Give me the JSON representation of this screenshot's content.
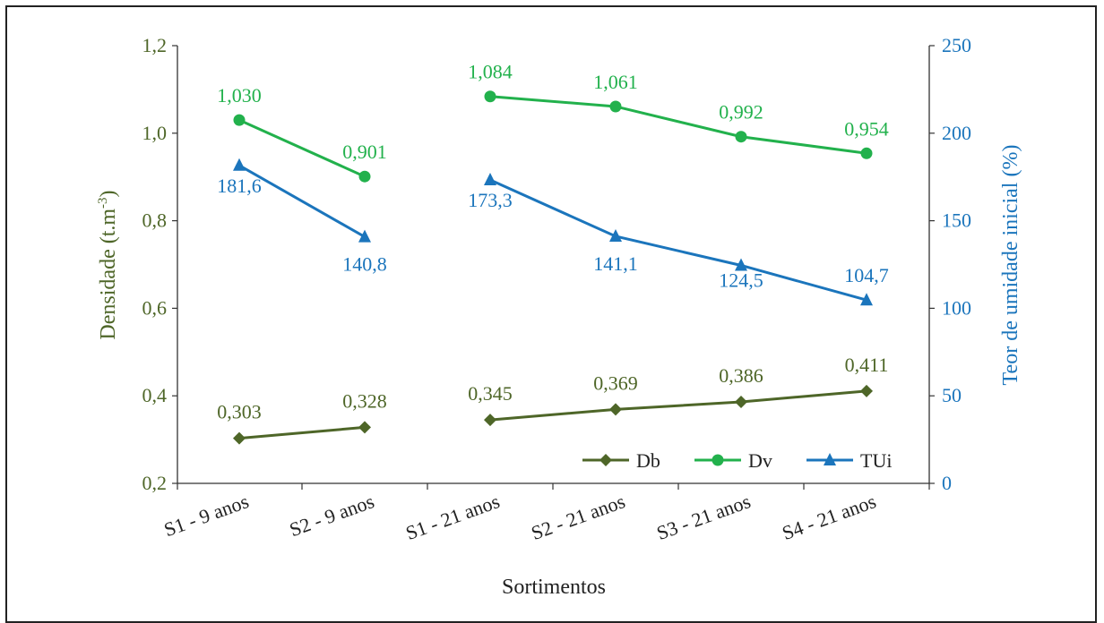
{
  "chart_data": {
    "type": "line",
    "categories": [
      "S1 - 9 anos",
      "S2 - 9 anos",
      "S1 - 21 anos",
      "S2 - 21 anos",
      "S3 - 21 anos",
      "S4 - 21 anos"
    ],
    "xlabel": "Sortimentos",
    "ylabel_left": "Densidade (t.m",
    "ylabel_left_sup": "-3",
    "ylabel_left_end": ")",
    "ylabel_right": "Teor de umidade inicial  (%)",
    "ylim_left": [
      0.2,
      1.2
    ],
    "ylim_right": [
      0,
      250
    ],
    "left_ticks": [
      "0,2",
      "0,4",
      "0,6",
      "0,8",
      "1,0",
      "1,2"
    ],
    "right_ticks": [
      "0",
      "50",
      "100",
      "150",
      "200",
      "250"
    ],
    "grid": false,
    "legend_position": "bottom-right",
    "series": [
      {
        "name": "Db",
        "axis": "left",
        "color": "#4e6628",
        "marker": "diamond",
        "segments": [
          [
            0,
            1
          ],
          [
            2,
            3,
            4,
            5
          ]
        ],
        "values": [
          0.303,
          0.328,
          0.345,
          0.369,
          0.386,
          0.411
        ],
        "labels": [
          "0,303",
          "0,328",
          "0,345",
          "0,369",
          "0,386",
          "0,411"
        ]
      },
      {
        "name": "Dv",
        "axis": "left",
        "color": "#22b14c",
        "marker": "circle",
        "segments": [
          [
            0,
            1
          ],
          [
            2,
            3,
            4,
            5
          ]
        ],
        "values": [
          1.03,
          0.901,
          1.084,
          1.061,
          0.992,
          0.954
        ],
        "labels": [
          "1,030",
          "0,901",
          "1,084",
          "1,061",
          "0,992",
          "0,954"
        ]
      },
      {
        "name": "TUi",
        "axis": "right",
        "color": "#1b75bc",
        "marker": "triangle",
        "segments": [
          [
            0,
            1
          ],
          [
            2,
            3,
            4,
            5
          ]
        ],
        "values": [
          181.6,
          140.8,
          173.3,
          141.1,
          124.5,
          104.7
        ],
        "labels": [
          "181,6",
          "140,8",
          "173,3",
          "141,1",
          "124,5",
          "104,7"
        ]
      }
    ],
    "colors": {
      "left_axis": "#4e6628",
      "right_axis": "#1b75bc"
    }
  }
}
